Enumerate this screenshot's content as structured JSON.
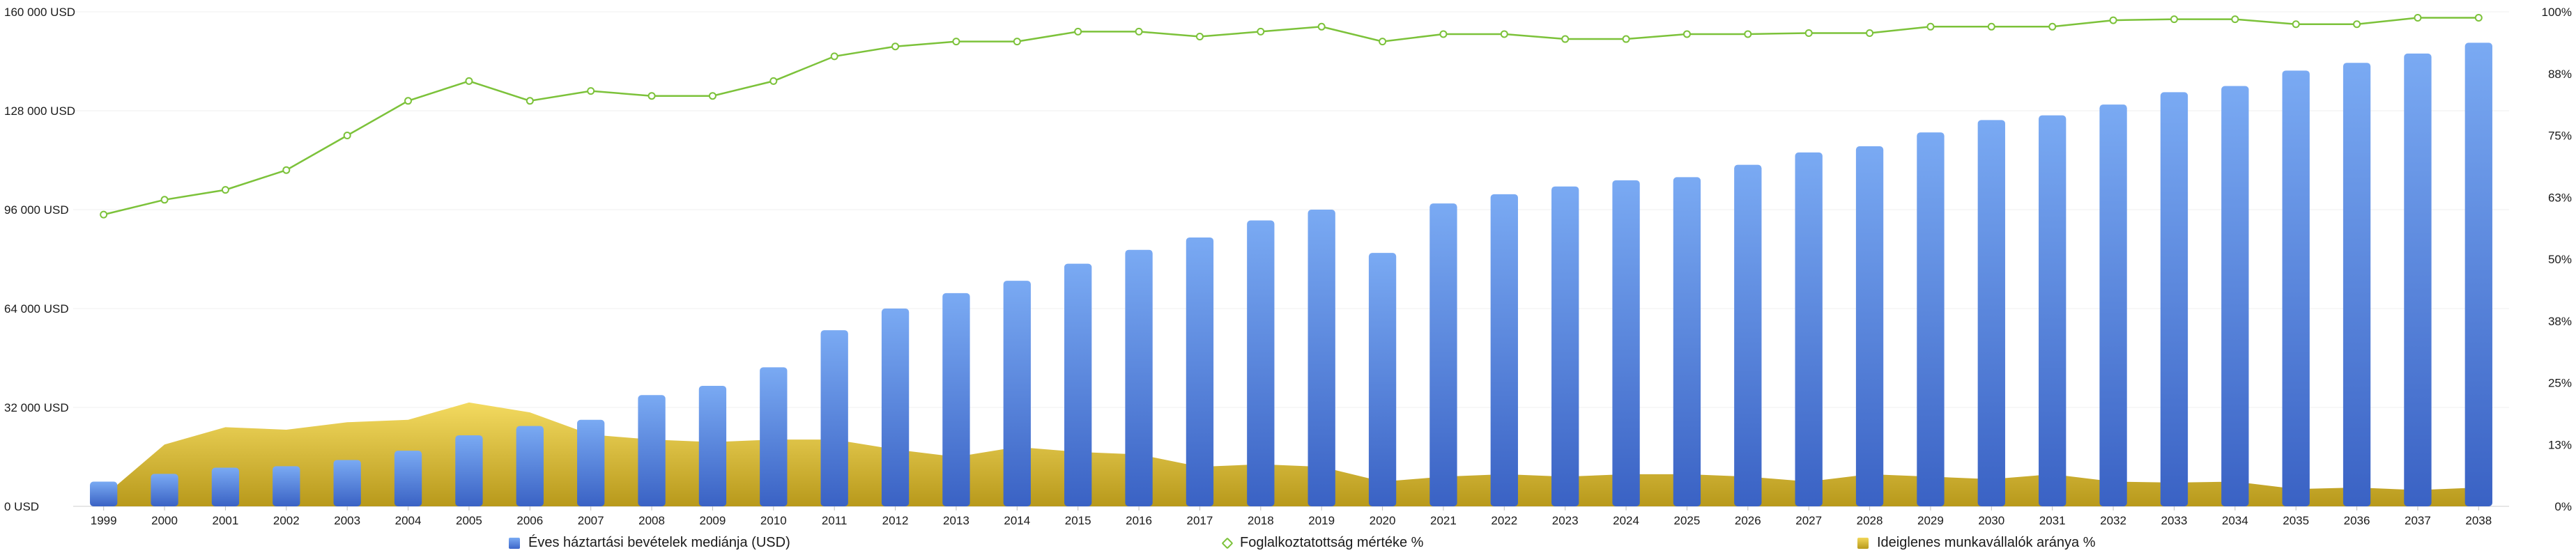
{
  "chart_data": {
    "type": "bar",
    "categories": [
      "1999",
      "2000",
      "2001",
      "2002",
      "2003",
      "2004",
      "2005",
      "2006",
      "2007",
      "2008",
      "2009",
      "2010",
      "2011",
      "2012",
      "2013",
      "2014",
      "2015",
      "2016",
      "2017",
      "2018",
      "2019",
      "2020",
      "2021",
      "2022",
      "2023",
      "2024",
      "2025",
      "2026",
      "2027",
      "2028",
      "2029",
      "2030",
      "2031",
      "2032",
      "2033",
      "2034",
      "2035",
      "2036",
      "2037",
      "2038"
    ],
    "y_left": {
      "ylim": [
        0,
        160000
      ],
      "ticks": [
        "0 USD",
        "32 000 USD",
        "64 000 USD",
        "96 000 USD",
        "128 000 USD",
        "160 000 USD"
      ]
    },
    "y_right": {
      "ylim": [
        0,
        100
      ],
      "ticks": [
        "0%",
        "13%",
        "25%",
        "38%",
        "50%",
        "63%",
        "75%",
        "88%",
        "100%"
      ]
    },
    "grid": true,
    "legend_position": "bottom",
    "series": [
      {
        "name": "Éves háztartási bevételek mediánja (USD)",
        "type": "bar",
        "axis": "left",
        "color": "#5b8de6",
        "values": [
          8000,
          10500,
          12500,
          13000,
          15000,
          18000,
          23000,
          26000,
          28000,
          36000,
          39000,
          45000,
          57000,
          64000,
          69000,
          73000,
          78500,
          83000,
          87000,
          92500,
          96000,
          82000,
          98000,
          101000,
          103500,
          105500,
          106500,
          110500,
          114500,
          116500,
          121000,
          125000,
          126500,
          130000,
          134000,
          136000,
          141000,
          143500,
          146500,
          150000
        ]
      },
      {
        "name": "Foglalkoztatottság mértéke %",
        "type": "line",
        "axis": "right",
        "color": "#7cc23a",
        "values": [
          59,
          62,
          64,
          68,
          75,
          82,
          86,
          82,
          84,
          83,
          83,
          86,
          91,
          93,
          94,
          94,
          96,
          96,
          95,
          96,
          97,
          94,
          95.5,
          95.5,
          94.5,
          94.5,
          95.5,
          95.5,
          95.7,
          95.7,
          97,
          97,
          97,
          98.3,
          98.5,
          98.5,
          97.5,
          97.5,
          98.8,
          98.8
        ]
      },
      {
        "name": "Ideiglenes munkavállalók aránya %",
        "type": "area",
        "axis": "right",
        "color": "#d4b72f",
        "values": [
          2,
          12.5,
          16,
          15.5,
          17,
          17.5,
          21,
          19,
          14.5,
          13.5,
          13,
          13.5,
          13.5,
          11.5,
          10,
          12,
          11,
          10.5,
          8,
          8.5,
          8,
          5,
          6,
          6.5,
          6,
          6.5,
          6.5,
          6,
          5,
          6.5,
          6,
          5.5,
          6.5,
          5,
          4.8,
          5,
          3.5,
          3.8,
          3.3,
          3.8
        ]
      }
    ]
  }
}
